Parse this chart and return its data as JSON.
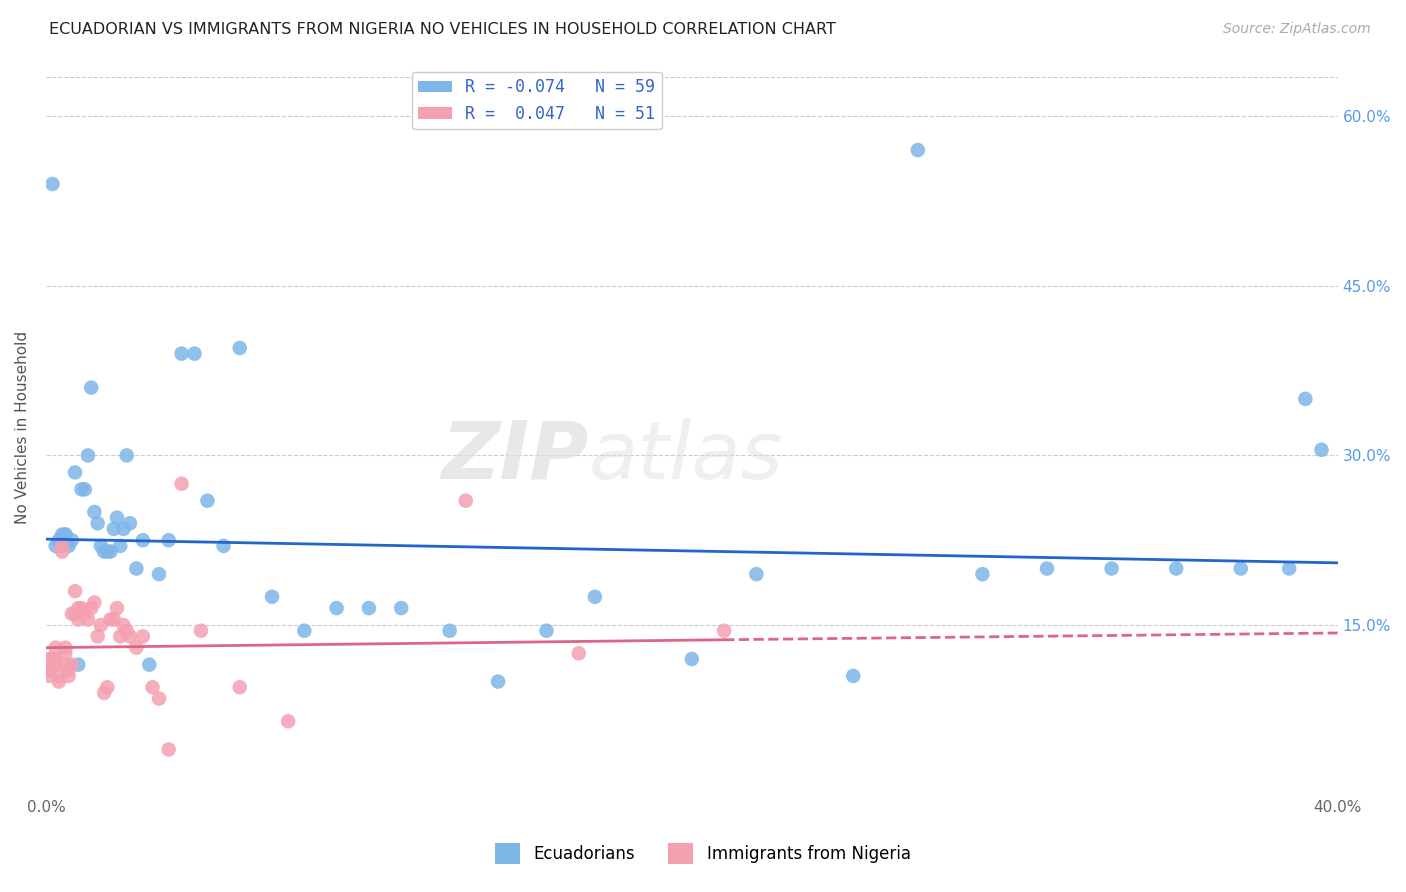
{
  "title": "ECUADORIAN VS IMMIGRANTS FROM NIGERIA NO VEHICLES IN HOUSEHOLD CORRELATION CHART",
  "source": "Source: ZipAtlas.com",
  "ylabel": "No Vehicles in Household",
  "yticks": [
    "15.0%",
    "30.0%",
    "45.0%",
    "60.0%"
  ],
  "ytick_vals": [
    0.15,
    0.3,
    0.45,
    0.6
  ],
  "xlim": [
    0.0,
    0.4
  ],
  "ylim": [
    0.0,
    0.65
  ],
  "legend_blue_r": "R = -0.074",
  "legend_blue_n": "N = 59",
  "legend_pink_r": "R =  0.047",
  "legend_pink_n": "N = 51",
  "blue_color": "#7EB6E8",
  "pink_color": "#F4A0B0",
  "trendline_blue_color": "#2266CC",
  "trendline_pink_color": "#DD6688",
  "blue_x": [
    0.001,
    0.002,
    0.003,
    0.004,
    0.005,
    0.005,
    0.006,
    0.006,
    0.007,
    0.008,
    0.009,
    0.01,
    0.011,
    0.012,
    0.013,
    0.014,
    0.015,
    0.016,
    0.017,
    0.018,
    0.019,
    0.02,
    0.021,
    0.022,
    0.023,
    0.024,
    0.025,
    0.026,
    0.028,
    0.03,
    0.032,
    0.035,
    0.038,
    0.042,
    0.046,
    0.05,
    0.055,
    0.06,
    0.07,
    0.08,
    0.09,
    0.1,
    0.11,
    0.125,
    0.14,
    0.155,
    0.17,
    0.2,
    0.22,
    0.25,
    0.27,
    0.29,
    0.31,
    0.33,
    0.35,
    0.37,
    0.385,
    0.39,
    0.395
  ],
  "blue_y": [
    0.11,
    0.54,
    0.22,
    0.225,
    0.22,
    0.23,
    0.23,
    0.23,
    0.22,
    0.225,
    0.285,
    0.115,
    0.27,
    0.27,
    0.3,
    0.36,
    0.25,
    0.24,
    0.22,
    0.215,
    0.215,
    0.215,
    0.235,
    0.245,
    0.22,
    0.235,
    0.3,
    0.24,
    0.2,
    0.225,
    0.115,
    0.195,
    0.225,
    0.39,
    0.39,
    0.26,
    0.22,
    0.395,
    0.175,
    0.145,
    0.165,
    0.165,
    0.165,
    0.145,
    0.1,
    0.145,
    0.175,
    0.12,
    0.195,
    0.105,
    0.57,
    0.195,
    0.2,
    0.2,
    0.2,
    0.2,
    0.2,
    0.35,
    0.305
  ],
  "pink_x": [
    0.001,
    0.001,
    0.001,
    0.002,
    0.002,
    0.003,
    0.003,
    0.003,
    0.004,
    0.004,
    0.005,
    0.005,
    0.006,
    0.006,
    0.006,
    0.007,
    0.007,
    0.008,
    0.008,
    0.009,
    0.009,
    0.01,
    0.01,
    0.011,
    0.012,
    0.013,
    0.014,
    0.015,
    0.016,
    0.017,
    0.018,
    0.019,
    0.02,
    0.021,
    0.022,
    0.023,
    0.024,
    0.025,
    0.026,
    0.028,
    0.03,
    0.033,
    0.035,
    0.038,
    0.042,
    0.048,
    0.06,
    0.075,
    0.13,
    0.165,
    0.21
  ],
  "pink_y": [
    0.12,
    0.11,
    0.105,
    0.12,
    0.115,
    0.13,
    0.12,
    0.115,
    0.105,
    0.1,
    0.22,
    0.215,
    0.115,
    0.125,
    0.13,
    0.11,
    0.105,
    0.16,
    0.115,
    0.18,
    0.16,
    0.155,
    0.165,
    0.165,
    0.16,
    0.155,
    0.165,
    0.17,
    0.14,
    0.15,
    0.09,
    0.095,
    0.155,
    0.155,
    0.165,
    0.14,
    0.15,
    0.145,
    0.14,
    0.13,
    0.14,
    0.095,
    0.085,
    0.04,
    0.275,
    0.145,
    0.095,
    0.065,
    0.26,
    0.125,
    0.145
  ],
  "watermark_zip": "ZIP",
  "watermark_atlas": "atlas",
  "background_color": "#FFFFFF",
  "grid_color": "#CCCCCC"
}
